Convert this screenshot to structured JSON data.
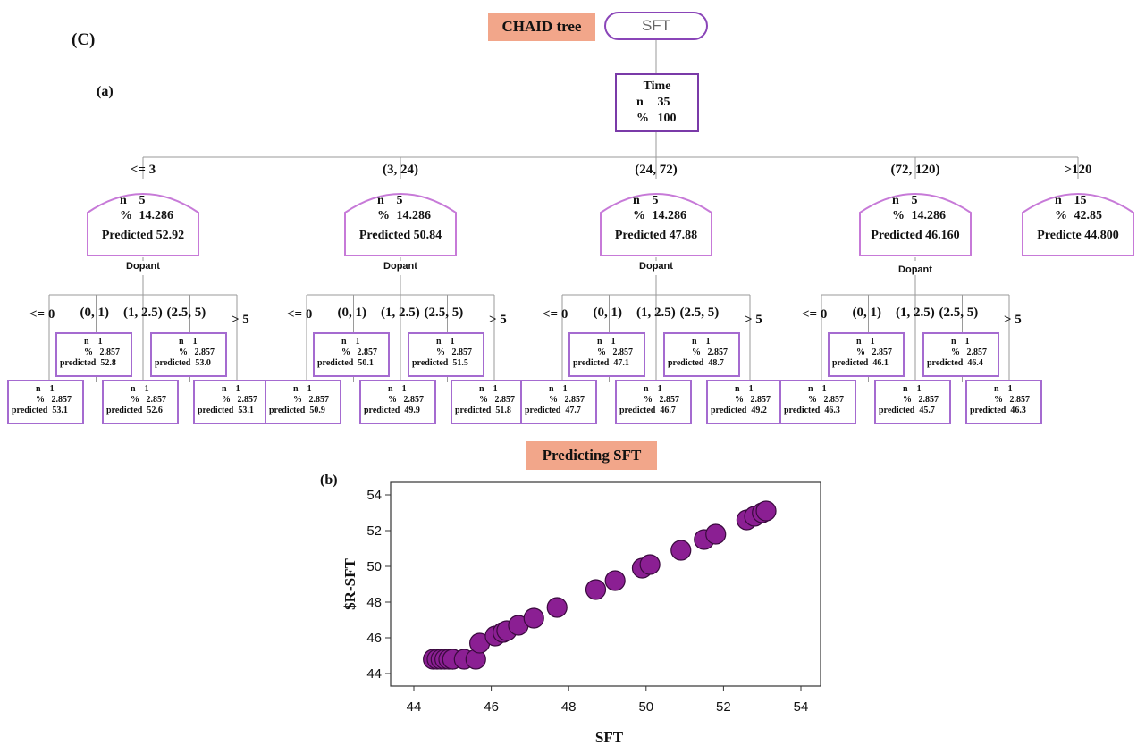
{
  "panel_label": "(C)",
  "sub_a": "(a)",
  "sub_b": "(b)",
  "tree_title": "CHAID tree",
  "chart_title": "Predicting SFT",
  "root_label": "SFT",
  "time_node": {
    "var": "Time",
    "n_key": "n",
    "n_val": "35",
    "pct_key": "%",
    "pct_val": "100"
  },
  "branches": [
    {
      "edge": "<= 3",
      "n": "5",
      "pct": "14.286",
      "pred_key": "Predicted",
      "pred": "52.92",
      "split": "Dopant",
      "cats": [
        "<= 0",
        "(0, 1)",
        "(1, 2.5)",
        "(2.5, 5)",
        "> 5"
      ],
      "leaves": [
        "53.1",
        "52.8",
        "52.6",
        "53.0",
        "53.1"
      ]
    },
    {
      "edge": "(3, 24)",
      "n": "5",
      "pct": "14.286",
      "pred_key": "Predicted",
      "pred": "50.84",
      "split": "Dopant",
      "cats": [
        "<= 0",
        "(0, 1)",
        "(1, 2.5)",
        "(2.5, 5)",
        "> 5"
      ],
      "leaves": [
        "50.9",
        "50.1",
        "49.9",
        "51.5",
        "51.8"
      ]
    },
    {
      "edge": "(24, 72)",
      "n": "5",
      "pct": "14.286",
      "pred_key": "Predicted",
      "pred": "47.88",
      "split": "Dopant",
      "cats": [
        "<= 0",
        "(0, 1)",
        "(1, 2.5)",
        "(2.5, 5)",
        "> 5"
      ],
      "leaves": [
        "47.7",
        "47.1",
        "46.7",
        "48.7",
        "49.2"
      ]
    },
    {
      "edge": "(72, 120)",
      "n": "5",
      "pct": "14.286",
      "pred_key": "Predicted",
      "pred": "46.160",
      "split": "Dopant",
      "cats": [
        "<= 0",
        "(0, 1)",
        "(1, 2.5)",
        "(2.5, 5)",
        "> 5"
      ],
      "leaves": [
        "46.3",
        "46.1",
        "45.7",
        "46.4",
        "46.3"
      ]
    },
    {
      "edge": ">120",
      "n": "15",
      "pct": "42.85",
      "pred_key": "Predicte",
      "pred": "44.800"
    }
  ],
  "leaf_labels": {
    "n_key": "n",
    "n_val": "1",
    "pct_key": "%",
    "pct_val": "2.857",
    "pred_key": "predicted"
  },
  "chart_data": {
    "type": "scatter",
    "title": "",
    "xlabel": "SFT",
    "ylabel": "$R-SFT",
    "xlim": [
      44,
      54
    ],
    "ylim": [
      44,
      54
    ],
    "xticks": [
      44,
      46,
      48,
      50,
      52,
      54
    ],
    "yticks": [
      44,
      46,
      48,
      50,
      52,
      54
    ],
    "grid": true,
    "marker_color": "#8b1f93",
    "points": [
      [
        44.5,
        44.8
      ],
      [
        44.6,
        44.8
      ],
      [
        44.7,
        44.8
      ],
      [
        44.8,
        44.8
      ],
      [
        44.9,
        44.8
      ],
      [
        45.0,
        44.8
      ],
      [
        45.0,
        44.8
      ],
      [
        45.3,
        44.8
      ],
      [
        45.6,
        44.8
      ],
      [
        45.7,
        45.7
      ],
      [
        46.1,
        46.1
      ],
      [
        46.3,
        46.3
      ],
      [
        46.3,
        46.3
      ],
      [
        46.4,
        46.4
      ],
      [
        46.7,
        46.7
      ],
      [
        47.1,
        47.1
      ],
      [
        47.7,
        47.7
      ],
      [
        48.7,
        48.7
      ],
      [
        49.2,
        49.2
      ],
      [
        49.9,
        49.9
      ],
      [
        50.1,
        50.1
      ],
      [
        50.9,
        50.9
      ],
      [
        51.5,
        51.5
      ],
      [
        51.8,
        51.8
      ],
      [
        52.6,
        52.6
      ],
      [
        52.8,
        52.8
      ],
      [
        53.0,
        53.0
      ],
      [
        53.1,
        53.1
      ]
    ]
  }
}
